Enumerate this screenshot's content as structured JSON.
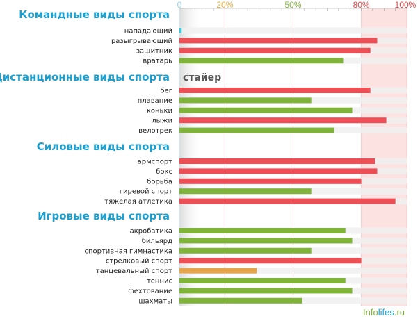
{
  "chart_data": {
    "type": "bar",
    "orientation": "horizontal",
    "xlim": [
      0,
      100
    ],
    "unit": "%",
    "ticks": [
      {
        "value": 0,
        "label": "0",
        "color": "#8fd3ea"
      },
      {
        "value": 20,
        "label": "20%",
        "color": "#e3b045"
      },
      {
        "value": 50,
        "label": "50%",
        "color": "#7fb33a"
      },
      {
        "value": 80,
        "label": "80%",
        "color": "#e04848"
      },
      {
        "value": 100,
        "label": "100%",
        "color": "#e04848"
      }
    ],
    "highlight_range": [
      80,
      100
    ],
    "colors": {
      "red": "#ec4f55",
      "green": "#7fb33a",
      "orange": "#e6a54a",
      "cyan": "#3fc6d8",
      "title": "#1a9fd0",
      "highlight": "#fde2e2"
    },
    "groups": [
      {
        "title": "Командные виды спорта",
        "annotation": "",
        "rows": [
          {
            "label": "нападающий",
            "value": 1,
            "color": "cyan"
          },
          {
            "label": "разыгрывающий",
            "value": 87,
            "color": "red"
          },
          {
            "label": "защитник",
            "value": 84,
            "color": "red"
          },
          {
            "label": "вратарь",
            "value": 72,
            "color": "green"
          }
        ]
      },
      {
        "title": "Дистанционные виды спорта",
        "annotation": "стайер",
        "rows": [
          {
            "label": "бег",
            "value": 84,
            "color": "red"
          },
          {
            "label": "плавание",
            "value": 58,
            "color": "green"
          },
          {
            "label": "коньки",
            "value": 76,
            "color": "green"
          },
          {
            "label": "лыжи",
            "value": 91,
            "color": "red"
          },
          {
            "label": "велотрек",
            "value": 68,
            "color": "green"
          }
        ]
      },
      {
        "title": "Силовые виды спорта",
        "annotation": "",
        "rows": [
          {
            "label": "армспорт",
            "value": 86,
            "color": "red"
          },
          {
            "label": "бокс",
            "value": 87,
            "color": "red"
          },
          {
            "label": "борьба",
            "value": 80,
            "color": "red"
          },
          {
            "label": "гиревой спорт",
            "value": 58,
            "color": "green"
          },
          {
            "label": "тяжелая атлетика",
            "value": 95,
            "color": "red"
          }
        ]
      },
      {
        "title": "Игровые виды спорта",
        "annotation": "",
        "rows": [
          {
            "label": "акробатика",
            "value": 73,
            "color": "green"
          },
          {
            "label": "бильярд",
            "value": 76,
            "color": "green"
          },
          {
            "label": "спортивная гимнастика",
            "value": 58,
            "color": "green"
          },
          {
            "label": "стрелковый спорт",
            "value": 80,
            "color": "red"
          },
          {
            "label": "танцевальный спорт",
            "value": 34,
            "color": "orange"
          },
          {
            "label": "теннис",
            "value": 73,
            "color": "green"
          },
          {
            "label": "фехтование",
            "value": 76,
            "color": "green"
          },
          {
            "label": "шахматы",
            "value": 54,
            "color": "green"
          }
        ]
      }
    ]
  },
  "watermark": {
    "part1": "Info",
    "part2": "lifes",
    "part3": ".ru",
    "color1": "#7fb33a",
    "color2": "#1a9fd0",
    "color3": "#7fb33a"
  }
}
